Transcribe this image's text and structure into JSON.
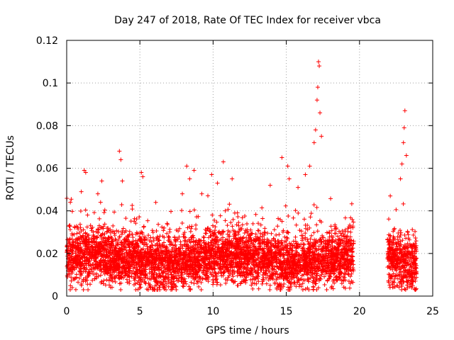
{
  "chart_data": {
    "type": "scatter",
    "title": "Day 247 of 2018, Rate Of TEC Index for receiver vbca",
    "xlabel": "GPS time / hours",
    "ylabel": "ROTI / TECUs",
    "xlim": [
      0,
      25
    ],
    "ylim": [
      0,
      0.12
    ],
    "x_ticks": [
      0,
      5,
      10,
      15,
      20,
      25
    ],
    "x_tick_labels": [
      "0",
      "5",
      "10",
      "15",
      "20",
      "25"
    ],
    "y_ticks": [
      0,
      0.02,
      0.04,
      0.06,
      0.08,
      0.1,
      0.12
    ],
    "y_tick_labels": [
      "0",
      "0.02",
      "0.04",
      "0.06",
      "0.08",
      "0.1",
      "0.12"
    ],
    "grid": true,
    "marker": "+",
    "color": "#ff0000",
    "series": [
      {
        "name": "ROTI",
        "segments": [
          {
            "x_start": 0.0,
            "x_end": 19.6,
            "typical_min": 0.005,
            "typical_max": 0.045
          },
          {
            "x_start": 21.9,
            "x_end": 23.9,
            "typical_min": 0.005,
            "typical_max": 0.045
          }
        ],
        "data_gap": [
          19.6,
          21.9
        ],
        "notable_points": [
          {
            "x": 0.25,
            "y": 0.044
          },
          {
            "x": 1.0,
            "y": 0.049
          },
          {
            "x": 1.2,
            "y": 0.059
          },
          {
            "x": 1.3,
            "y": 0.058
          },
          {
            "x": 2.4,
            "y": 0.054
          },
          {
            "x": 3.6,
            "y": 0.068
          },
          {
            "x": 3.7,
            "y": 0.064
          },
          {
            "x": 3.8,
            "y": 0.054
          },
          {
            "x": 5.1,
            "y": 0.058
          },
          {
            "x": 5.2,
            "y": 0.056
          },
          {
            "x": 7.9,
            "y": 0.048
          },
          {
            "x": 8.2,
            "y": 0.061
          },
          {
            "x": 8.4,
            "y": 0.055
          },
          {
            "x": 8.7,
            "y": 0.059
          },
          {
            "x": 9.9,
            "y": 0.057
          },
          {
            "x": 10.3,
            "y": 0.053
          },
          {
            "x": 10.7,
            "y": 0.063
          },
          {
            "x": 11.3,
            "y": 0.055
          },
          {
            "x": 13.9,
            "y": 0.052
          },
          {
            "x": 14.7,
            "y": 0.065
          },
          {
            "x": 15.1,
            "y": 0.061
          },
          {
            "x": 15.2,
            "y": 0.055
          },
          {
            "x": 15.8,
            "y": 0.051
          },
          {
            "x": 16.3,
            "y": 0.057
          },
          {
            "x": 16.6,
            "y": 0.061
          },
          {
            "x": 16.9,
            "y": 0.072
          },
          {
            "x": 17.0,
            "y": 0.078
          },
          {
            "x": 17.1,
            "y": 0.092
          },
          {
            "x": 17.15,
            "y": 0.098
          },
          {
            "x": 17.2,
            "y": 0.11
          },
          {
            "x": 17.25,
            "y": 0.108
          },
          {
            "x": 17.3,
            "y": 0.086
          },
          {
            "x": 17.4,
            "y": 0.075
          },
          {
            "x": 22.1,
            "y": 0.047
          },
          {
            "x": 22.8,
            "y": 0.055
          },
          {
            "x": 22.9,
            "y": 0.062
          },
          {
            "x": 23.0,
            "y": 0.072
          },
          {
            "x": 23.05,
            "y": 0.079
          },
          {
            "x": 23.1,
            "y": 0.087
          },
          {
            "x": 23.2,
            "y": 0.066
          }
        ]
      }
    ]
  }
}
